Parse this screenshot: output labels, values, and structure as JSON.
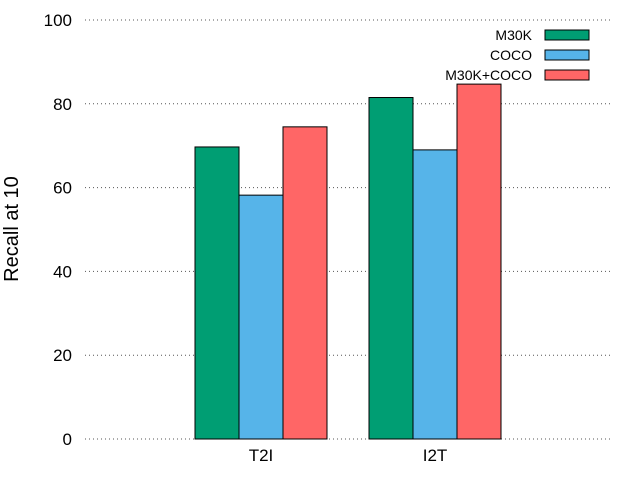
{
  "chart_data": {
    "type": "bar",
    "title": "",
    "xlabel": "",
    "ylabel": "Recall at 10",
    "categories": [
      "T2I",
      "I2T"
    ],
    "series": [
      {
        "name": "M30K",
        "color": "#009e73",
        "values": [
          69.7,
          81.5
        ]
      },
      {
        "name": "COCO",
        "color": "#56b4e9",
        "values": [
          58.2,
          69.0
        ]
      },
      {
        "name": "M30K+COCO",
        "color": "#ff6666",
        "values": [
          74.5,
          84.7
        ]
      }
    ],
    "ylim": [
      0,
      100
    ],
    "yticks": [
      0,
      20,
      40,
      60,
      80,
      100
    ],
    "grid": true,
    "grid_style": "dotted",
    "legend_position": "top-right"
  }
}
